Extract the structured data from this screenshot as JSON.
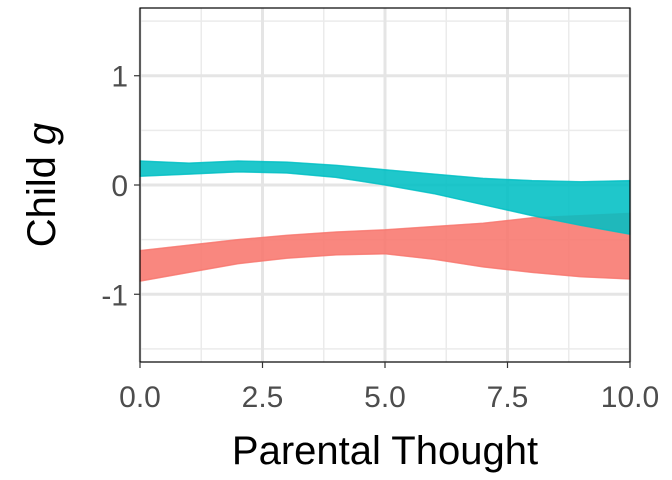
{
  "chart_data": {
    "type": "area",
    "xlabel": "Parental Thought",
    "ylabel": "Child",
    "ylabel_symbol": "g",
    "xlim": [
      0,
      10
    ],
    "ylim": [
      -1.62,
      1.62
    ],
    "x_ticks": [
      0,
      2.5,
      5,
      7.5,
      10
    ],
    "x_tick_labels": [
      "0.0",
      "2.5",
      "5.0",
      "7.5",
      "10.0"
    ],
    "y_ticks": [
      -1,
      0,
      1
    ],
    "y_tick_labels": [
      "-1",
      "0",
      "1"
    ],
    "grid": true,
    "legend": "none",
    "series": [
      {
        "color": "#F8766D",
        "x": [
          0,
          1,
          2,
          3,
          4,
          5,
          6,
          7,
          8,
          9,
          10
        ],
        "lower": [
          -0.88,
          -0.8,
          -0.72,
          -0.67,
          -0.64,
          -0.63,
          -0.68,
          -0.75,
          -0.8,
          -0.84,
          -0.86
        ],
        "upper": [
          -0.6,
          -0.55,
          -0.5,
          -0.46,
          -0.43,
          -0.41,
          -0.38,
          -0.35,
          -0.3,
          -0.28,
          -0.26
        ]
      },
      {
        "color": "#00BFC4",
        "x": [
          0,
          1,
          2,
          3,
          4,
          5,
          6,
          7,
          8,
          9,
          10
        ],
        "lower": [
          0.08,
          0.1,
          0.12,
          0.11,
          0.07,
          0.0,
          -0.08,
          -0.18,
          -0.28,
          -0.37,
          -0.45
        ],
        "upper": [
          0.22,
          0.2,
          0.22,
          0.21,
          0.18,
          0.14,
          0.1,
          0.06,
          0.04,
          0.03,
          0.04
        ]
      }
    ]
  }
}
